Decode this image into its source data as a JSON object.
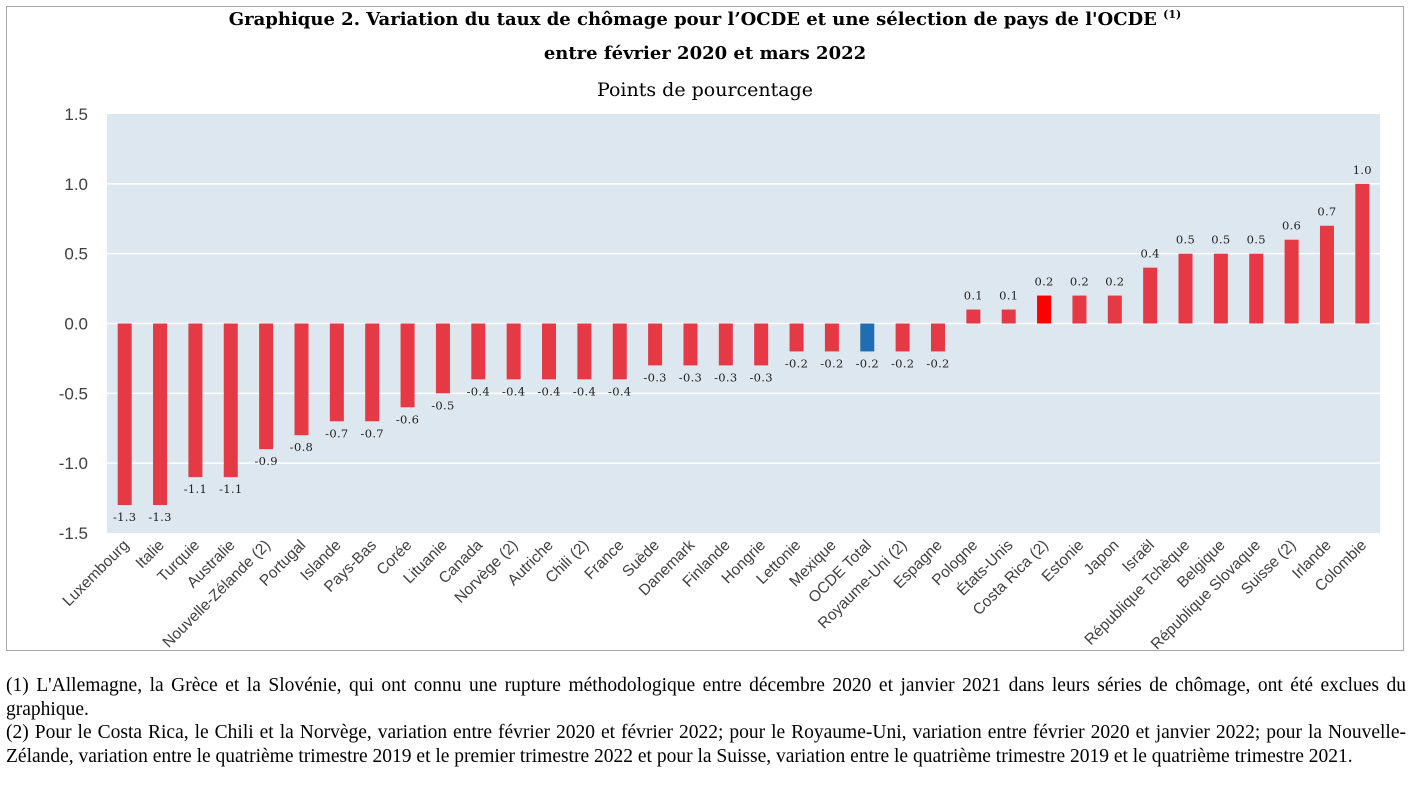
{
  "title": {
    "line1": "Graphique 2. Variation du taux de chômage pour l’OCDE et une sélection de pays de l'OCDE",
    "line1_ref": "(1)",
    "line2": "entre février 2020 et mars 2022",
    "subtitle": "Points de pourcentage"
  },
  "chart_data": {
    "type": "bar",
    "categories": [
      "Luxembourg",
      "Italie",
      "Turquie",
      "Australie",
      "Nouvelle-Zélande (2)",
      "Portugal",
      "Islande",
      "Pays-Bas",
      "Corée",
      "Lituanie",
      "Canada",
      "Norvège (2)",
      "Autriche",
      "Chili (2)",
      "France",
      "Suède",
      "Danemark",
      "Finlande",
      "Hongrie",
      "Lettonie",
      "Mexique",
      "OCDE Total",
      "Royaume-Uni (2)",
      "Espagne",
      "Pologne",
      "États-Unis",
      "Costa Rica (2)",
      "Estonie",
      "Japon",
      "Israël",
      "République Tchèque",
      "Belgique",
      "République Slovaque",
      "Suisse (2)",
      "Irlande",
      "Colombie"
    ],
    "values": [
      -1.3,
      -1.3,
      -1.1,
      -1.1,
      -0.9,
      -0.8,
      -0.7,
      -0.7,
      -0.6,
      -0.5,
      -0.4,
      -0.4,
      -0.4,
      -0.4,
      -0.4,
      -0.3,
      -0.3,
      -0.3,
      -0.3,
      -0.2,
      -0.2,
      -0.2,
      -0.2,
      -0.2,
      0.1,
      0.1,
      0.2,
      0.2,
      0.2,
      0.4,
      0.5,
      0.5,
      0.5,
      0.6,
      0.7,
      1.0
    ],
    "data_labels": [
      "-1.3",
      "-1.3",
      "-1.1",
      "-1.1",
      "-0.9",
      "-0.8",
      "-0.7",
      "-0.7",
      "-0.6",
      "-0.5",
      "-0.4",
      "-0.4",
      "-0.4",
      "-0.4",
      "-0.4",
      "-0.3",
      "-0.3",
      "-0.3",
      "-0.3",
      "-0.2",
      "-0.2",
      "-0.2",
      "-0.2",
      "-0.2",
      "0.1",
      "0.1",
      "0.2",
      "0.2",
      "0.2",
      "0.4",
      "0.5",
      "0.5",
      "0.5",
      "0.6",
      "0.7",
      "1.0"
    ],
    "highlight": {
      "OCDE Total": "#1f6eb4",
      "Costa Rica (2)": "#ff0000"
    },
    "ylim": [
      -1.5,
      1.5
    ],
    "yticks": [
      1.5,
      1.0,
      0.5,
      0.0,
      -0.5,
      -1.0,
      -1.5
    ],
    "ytick_labels": [
      "1.5",
      "1.0",
      "0.5",
      "0.0",
      "-0.5",
      "-1.0",
      "-1.5"
    ],
    "grid": true,
    "colors": {
      "bar": "#e63946",
      "plot_bg": "#dde7ef",
      "grid": "#ffffff"
    }
  },
  "footnotes": [
    "(1) L'Allemagne, la Grèce et la Slovénie, qui ont connu une rupture méthodologique entre décembre 2020 et janvier 2021 dans leurs séries de chômage, ont été exclues du graphique.",
    "(2) Pour le Costa Rica, le Chili et la Norvège, variation entre février 2020 et février 2022; pour le Royaume-Uni, variation entre février 2020 et janvier 2022; pour la Nouvelle-Zélande, variation entre le quatrième trimestre 2019 et le premier trimestre 2022 et pour la Suisse, variation entre le quatrième trimestre 2019 et le quatrième trimestre 2021."
  ]
}
